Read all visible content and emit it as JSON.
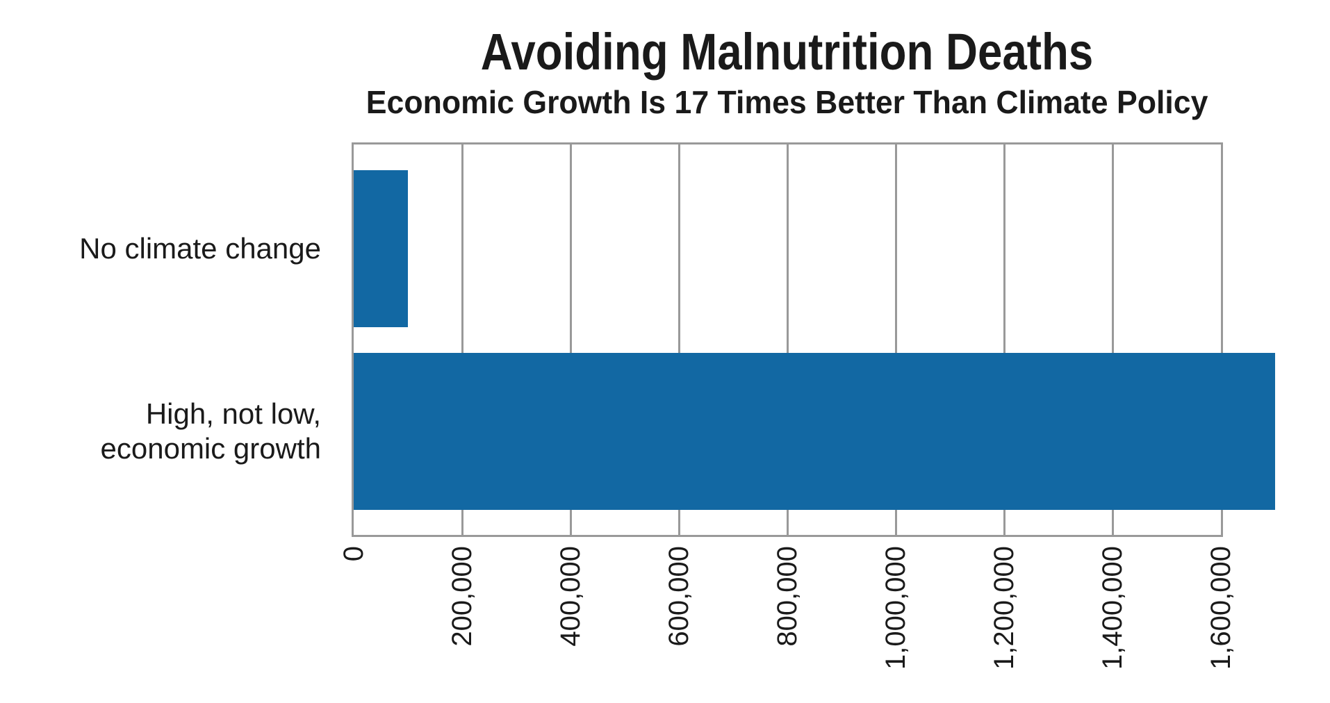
{
  "chart_data": {
    "type": "bar",
    "orientation": "horizontal",
    "title": "Avoiding Malnutrition Deaths",
    "subtitle": "Economic Growth Is 17 Times Better Than Climate Policy",
    "categories": [
      {
        "lines": [
          "No climate change"
        ],
        "value": 100000
      },
      {
        "lines": [
          "High, not low,",
          "economic growth"
        ],
        "value": 1700000
      }
    ],
    "values": [
      100000,
      1700000
    ],
    "xlim": [
      0,
      1600000
    ],
    "x_tick_values": [
      0,
      200000,
      400000,
      600000,
      800000,
      1000000,
      1200000,
      1400000,
      1600000
    ],
    "x_tick_labels": [
      "0",
      "200,000",
      "400,000",
      "600,000",
      "800,000",
      "1,000,000",
      "1,200,000",
      "1,400,000",
      "1,600,000"
    ],
    "x_tick_rotation_deg": -90,
    "grid": true,
    "legend": "none",
    "xlabel": "",
    "ylabel": "",
    "colors": {
      "bar": "#1268A3",
      "grid": "#999999",
      "spine": "#999999",
      "text": "#1a1a1a",
      "background": "#ffffff"
    }
  }
}
